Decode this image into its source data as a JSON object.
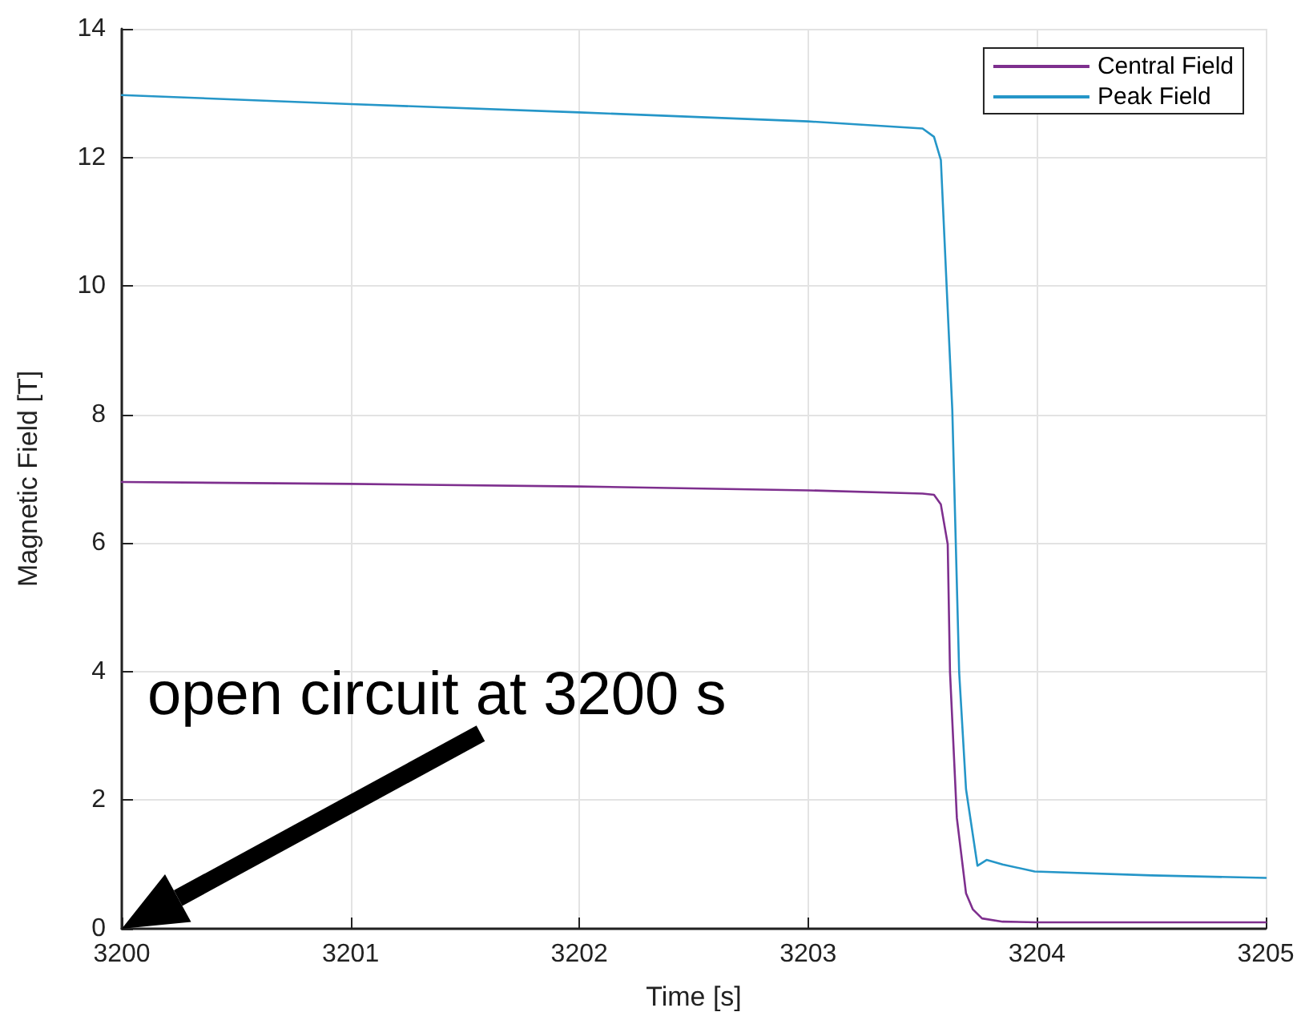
{
  "chart_data": {
    "type": "line",
    "xlabel": "Time [s]",
    "ylabel": "Magnetic Field [T]",
    "xlim": [
      3200,
      3205
    ],
    "xticks": [
      3200,
      3201,
      3202,
      3203,
      3204,
      3205
    ],
    "ylim": [
      0,
      14
    ],
    "yticks": [
      0,
      2,
      4,
      6,
      8,
      10,
      12,
      14
    ],
    "grid": true,
    "legend": "top right",
    "marker": "none",
    "line_style": "solid",
    "annotations": [
      "open circuit at 3200 s"
    ],
    "series": [
      {
        "name": "Central Field",
        "color": "#7e2f8e",
        "x": [
          3200,
          3201,
          3202,
          3203,
          3203.5,
          3203.55,
          3203.58,
          3203.61,
          3203.62,
          3203.65,
          3203.69,
          3203.72,
          3203.76,
          3203.85,
          3204,
          3205
        ],
        "values": [
          6.95,
          6.92,
          6.88,
          6.82,
          6.77,
          6.75,
          6.6,
          5.98,
          3.99,
          1.72,
          0.55,
          0.3,
          0.16,
          0.11,
          0.1,
          0.1
        ]
      },
      {
        "name": "Peak Field",
        "color": "#2596c8",
        "x": [
          3200,
          3201,
          3202,
          3203,
          3203.5,
          3203.55,
          3203.58,
          3203.63,
          3203.66,
          3203.69,
          3203.74,
          3203.78,
          3203.85,
          3203.99,
          3204.5,
          3205
        ],
        "values": [
          12.97,
          12.83,
          12.7,
          12.56,
          12.45,
          12.32,
          11.96,
          8.07,
          3.99,
          2.17,
          0.98,
          1.07,
          1.0,
          0.89,
          0.83,
          0.79
        ]
      }
    ]
  }
}
